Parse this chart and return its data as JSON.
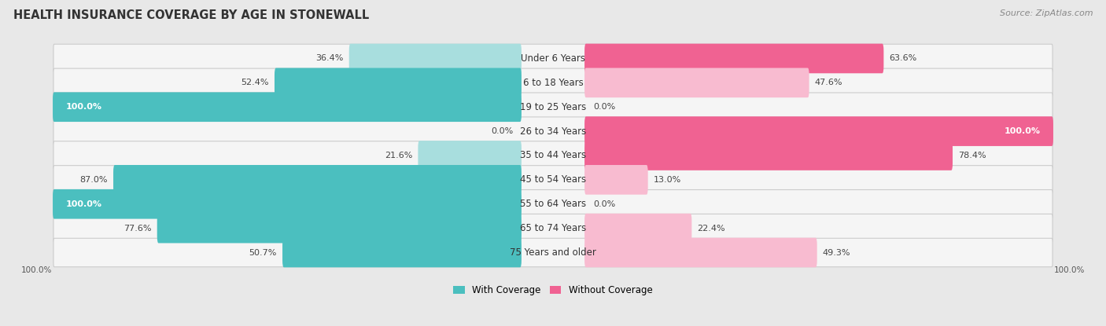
{
  "title": "HEALTH INSURANCE COVERAGE BY AGE IN STONEWALL",
  "source": "Source: ZipAtlas.com",
  "categories": [
    "Under 6 Years",
    "6 to 18 Years",
    "19 to 25 Years",
    "26 to 34 Years",
    "35 to 44 Years",
    "45 to 54 Years",
    "55 to 64 Years",
    "65 to 74 Years",
    "75 Years and older"
  ],
  "with_coverage": [
    36.4,
    52.4,
    100.0,
    0.0,
    21.6,
    87.0,
    100.0,
    77.6,
    50.7
  ],
  "without_coverage": [
    63.6,
    47.6,
    0.0,
    100.0,
    78.4,
    13.0,
    0.0,
    22.4,
    49.3
  ],
  "color_with": "#4bbfbf",
  "color_with_light": "#a8dede",
  "color_without": "#f06292",
  "color_without_light": "#f8bbd0",
  "bg_color": "#e8e8e8",
  "row_bg": "#f5f5f5",
  "title_fontsize": 10.5,
  "cat_fontsize": 8.5,
  "bar_label_fontsize": 8,
  "legend_fontsize": 8.5,
  "source_fontsize": 8
}
